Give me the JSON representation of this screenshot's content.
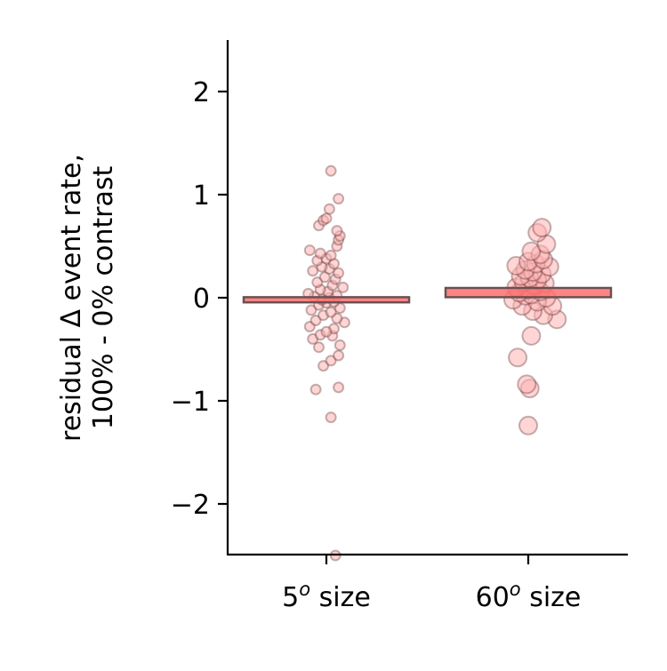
{
  "colors": {
    "point_fill": "#ffb3b3",
    "point_stroke": "#5a2a2a",
    "bar_fill": "#ff7070",
    "bar_stroke": "#6b5050",
    "axis": "#000000"
  },
  "chart_data": {
    "type": "scatter",
    "title": "",
    "ylabel": {
      "line1": "residual Δ event rate,",
      "line2": "100% - 0% contrast"
    },
    "ylim": [
      -2.5,
      2.5
    ],
    "yticks": [
      {
        "value": -2,
        "label": "−2"
      },
      {
        "value": -1,
        "label": "−1"
      },
      {
        "value": 0,
        "label": "0"
      },
      {
        "value": 1,
        "label": "1"
      },
      {
        "value": 2,
        "label": "2"
      }
    ],
    "categories": [
      {
        "base": "5",
        "superscript": "o",
        "suffix": " size"
      },
      {
        "base": "60",
        "superscript": "o",
        "suffix": " size"
      }
    ],
    "grid": false,
    "legend": "none",
    "groups": [
      {
        "mean": -0.02,
        "bar_half_height": 0.025,
        "point_size": "small",
        "points": [
          [
            0.06,
            -2.5
          ],
          [
            0.03,
            -1.16
          ],
          [
            -0.07,
            -0.89
          ],
          [
            0.08,
            -0.87
          ],
          [
            -0.02,
            -0.66
          ],
          [
            0.03,
            -0.61
          ],
          [
            0.08,
            -0.56
          ],
          [
            -0.05,
            -0.48
          ],
          [
            0.09,
            -0.46
          ],
          [
            -0.09,
            -0.4
          ],
          [
            0.04,
            -0.37
          ],
          [
            -0.04,
            -0.36
          ],
          [
            0.12,
            -0.24
          ],
          [
            -0.11,
            -0.28
          ],
          [
            0.05,
            -0.3
          ],
          [
            0.0,
            -0.33
          ],
          [
            -0.07,
            -0.22
          ],
          [
            0.07,
            -0.2
          ],
          [
            -0.02,
            -0.17
          ],
          [
            0.03,
            -0.14
          ],
          [
            -0.1,
            -0.12
          ],
          [
            0.09,
            -0.1
          ],
          [
            -0.05,
            -0.07
          ],
          [
            0.0,
            -0.05
          ],
          [
            0.05,
            -0.04
          ],
          [
            -0.03,
            -0.02
          ],
          [
            0.02,
            0.0
          ],
          [
            -0.08,
            0.01
          ],
          [
            0.07,
            0.02
          ],
          [
            -0.12,
            0.04
          ],
          [
            0.11,
            0.1
          ],
          [
            0.01,
            0.06
          ],
          [
            -0.04,
            0.08
          ],
          [
            0.04,
            0.12
          ],
          [
            -0.06,
            0.15
          ],
          [
            0.06,
            0.18
          ],
          [
            -0.01,
            0.2
          ],
          [
            0.08,
            0.24
          ],
          [
            -0.09,
            0.26
          ],
          [
            0.02,
            0.28
          ],
          [
            -0.03,
            0.3
          ],
          [
            0.05,
            0.33
          ],
          [
            -0.06,
            0.36
          ],
          [
            0.0,
            0.38
          ],
          [
            0.03,
            0.41
          ],
          [
            -0.04,
            0.43
          ],
          [
            -0.11,
            0.46
          ],
          [
            0.07,
            0.5
          ],
          [
            0.08,
            0.56
          ],
          [
            0.09,
            0.6
          ],
          [
            0.07,
            0.65
          ],
          [
            -0.05,
            0.7
          ],
          [
            -0.02,
            0.75
          ],
          [
            0.0,
            0.77
          ],
          [
            0.02,
            0.86
          ],
          [
            0.08,
            0.96
          ],
          [
            0.03,
            1.23
          ]
        ]
      },
      {
        "mean": 0.05,
        "bar_half_height": 0.045,
        "point_size": "large",
        "points": [
          [
            0.0,
            -1.24
          ],
          [
            0.01,
            -0.88
          ],
          [
            -0.01,
            -0.84
          ],
          [
            -0.07,
            -0.58
          ],
          [
            0.02,
            -0.37
          ],
          [
            0.19,
            -0.21
          ],
          [
            0.1,
            -0.17
          ],
          [
            0.03,
            -0.13
          ],
          [
            0.16,
            -0.08
          ],
          [
            -0.04,
            -0.08
          ],
          [
            0.06,
            -0.04
          ],
          [
            -0.1,
            -0.02
          ],
          [
            0.12,
            0.0
          ],
          [
            -0.02,
            0.02
          ],
          [
            0.02,
            0.03
          ],
          [
            -0.06,
            0.05
          ],
          [
            0.08,
            0.06
          ],
          [
            0.0,
            0.08
          ],
          [
            -0.08,
            0.1
          ],
          [
            0.04,
            0.12
          ],
          [
            0.11,
            0.14
          ],
          [
            -0.03,
            0.15
          ],
          [
            0.06,
            0.17
          ],
          [
            0.01,
            0.19
          ],
          [
            -0.05,
            0.21
          ],
          [
            0.09,
            0.23
          ],
          [
            0.03,
            0.25
          ],
          [
            -0.02,
            0.27
          ],
          [
            0.14,
            0.3
          ],
          [
            -0.08,
            0.31
          ],
          [
            0.05,
            0.33
          ],
          [
            0.0,
            0.35
          ],
          [
            0.1,
            0.37
          ],
          [
            0.08,
            0.42
          ],
          [
            0.02,
            0.45
          ],
          [
            0.12,
            0.52
          ],
          [
            0.06,
            0.63
          ],
          [
            0.09,
            0.68
          ]
        ]
      }
    ]
  }
}
